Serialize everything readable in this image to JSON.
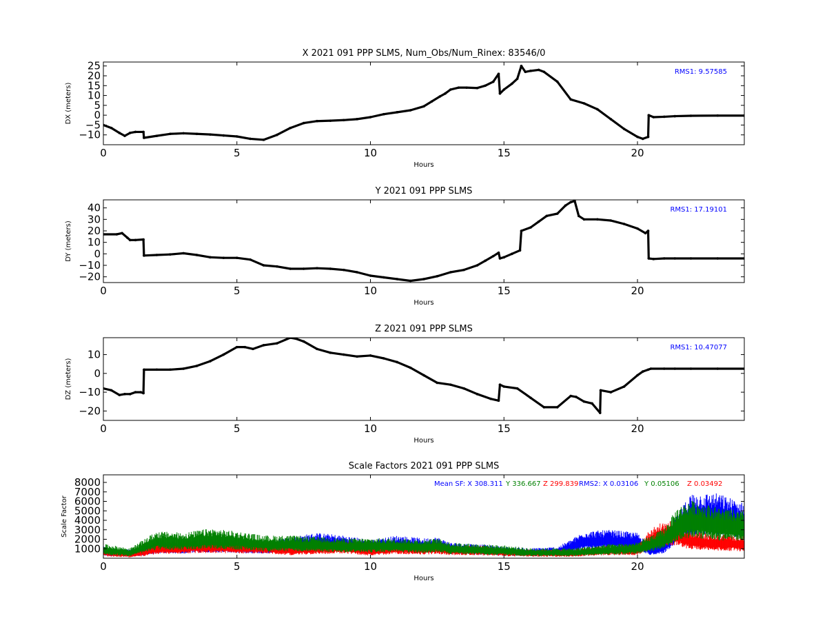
{
  "chart_data": [
    {
      "type": "scatter",
      "title": "X 2021 091 PPP  SLMS, Num_Obs/Num_Rinex: 83546/0",
      "xlabel": "Hours",
      "ylabel": "DX (meters)",
      "xlim": [
        0,
        24
      ],
      "ylim": [
        -15,
        27
      ],
      "xticks": [
        "0",
        "5",
        "10",
        "15",
        "20"
      ],
      "yticks": [
        "−10",
        "−5",
        "0",
        "5",
        "10",
        "15",
        "20",
        "25"
      ],
      "annotation": "RMS1:  9.57585",
      "series": [
        {
          "color": "#000000",
          "x": [
            0,
            0.3,
            0.6,
            0.8,
            1.0,
            1.2,
            1.5,
            1.52,
            2.0,
            2.5,
            3.0,
            3.5,
            4.0,
            4.5,
            5.0,
            5.5,
            6.0,
            6.5,
            7.0,
            7.5,
            8.0,
            8.5,
            9.0,
            9.5,
            10.0,
            10.5,
            11.0,
            11.5,
            12.0,
            12.3,
            12.6,
            12.8,
            13.0,
            13.3,
            13.6,
            14.0,
            14.3,
            14.6,
            14.8,
            14.85,
            15.0,
            15.3,
            15.5,
            15.65,
            15.8,
            16.0,
            16.3,
            16.5,
            17.0,
            17.5,
            18.0,
            18.5,
            19.0,
            19.5,
            20.0,
            20.2,
            20.4,
            20.42,
            20.6,
            21.0,
            21.4,
            22.0,
            23.0,
            24.0
          ],
          "y": [
            -5,
            -6.5,
            -9,
            -10.5,
            -9,
            -8.5,
            -8.5,
            -11.5,
            -10.5,
            -9.5,
            -9.2,
            -9.5,
            -9.8,
            -10.3,
            -10.8,
            -12,
            -12.5,
            -10,
            -6.5,
            -4,
            -3,
            -2.8,
            -2.5,
            -2,
            -1,
            0.5,
            1.5,
            2.5,
            4.5,
            7,
            9.5,
            11,
            13,
            14,
            14,
            13.8,
            15,
            17,
            21,
            11,
            13,
            16,
            18.5,
            25,
            22,
            22.5,
            23,
            22,
            17,
            8,
            6,
            3,
            -2,
            -7,
            -11,
            -12,
            -11,
            0,
            -1,
            -0.8,
            -0.5,
            -0.3,
            -0.2,
            -0.2
          ]
        }
      ],
      "legend": "top-right",
      "grid": false
    },
    {
      "type": "scatter",
      "title": "Y 2021 091 PPP  SLMS",
      "xlabel": "Hours",
      "ylabel": "DY (meters)",
      "xlim": [
        0,
        24
      ],
      "ylim": [
        -25,
        47
      ],
      "xticks": [
        "0",
        "5",
        "10",
        "15",
        "20"
      ],
      "yticks": [
        "−20",
        "−10",
        "0",
        "10",
        "20",
        "30",
        "40"
      ],
      "annotation": "RMS1: 17.19101",
      "series": [
        {
          "color": "#000000",
          "x": [
            0,
            0.5,
            0.7,
            0.9,
            1.0,
            1.2,
            1.5,
            1.52,
            2.0,
            2.5,
            3.0,
            3.5,
            4.0,
            4.5,
            5.0,
            5.5,
            6.0,
            6.5,
            7.0,
            7.5,
            8.0,
            8.5,
            9.0,
            9.5,
            10.0,
            10.5,
            11.0,
            11.5,
            12.0,
            12.5,
            13.0,
            13.5,
            14.0,
            14.3,
            14.6,
            14.8,
            14.85,
            15.0,
            15.3,
            15.6,
            15.65,
            16.0,
            16.3,
            16.6,
            17.0,
            17.3,
            17.5,
            17.65,
            17.8,
            18.0,
            18.5,
            19.0,
            19.5,
            20.0,
            20.3,
            20.4,
            20.42,
            20.6,
            21.0,
            21.4,
            22.0,
            23.0,
            24.0
          ],
          "y": [
            17,
            17,
            18,
            14,
            12,
            12,
            12.5,
            -1.5,
            -1,
            -0.5,
            0.5,
            -1,
            -3,
            -3.5,
            -3.5,
            -5,
            -10,
            -11,
            -13,
            -13,
            -12.5,
            -13,
            -14,
            -16,
            -19,
            -20.5,
            -22,
            -23.5,
            -22,
            -19.5,
            -16,
            -14,
            -10,
            -6,
            -2,
            1,
            -4,
            -3,
            0,
            3,
            20,
            23,
            28,
            33,
            35,
            42,
            45,
            46,
            33,
            30,
            30,
            29,
            26,
            22,
            18,
            20,
            -4,
            -4.5,
            -4,
            -4,
            -4,
            -4,
            -4
          ]
        }
      ],
      "legend": "top-right",
      "grid": false
    },
    {
      "type": "scatter",
      "title": "Z 2021 091 PPP  SLMS",
      "xlabel": "Hours",
      "ylabel": "DZ (meters)",
      "xlim": [
        0,
        24
      ],
      "ylim": [
        -25,
        19
      ],
      "xticks": [
        "0",
        "5",
        "10",
        "15",
        "20"
      ],
      "yticks": [
        "−20",
        "−10",
        "0",
        "10"
      ],
      "annotation": "RMS1: 10.47077",
      "series": [
        {
          "color": "#000000",
          "x": [
            0,
            0.3,
            0.6,
            0.8,
            1.0,
            1.2,
            1.4,
            1.5,
            1.52,
            2.0,
            2.5,
            3.0,
            3.5,
            4.0,
            4.5,
            5.0,
            5.3,
            5.6,
            6.0,
            6.5,
            7.0,
            7.2,
            7.5,
            8.0,
            8.5,
            9.0,
            9.5,
            10.0,
            10.5,
            11.0,
            11.5,
            12.0,
            12.5,
            13.0,
            13.5,
            14.0,
            14.5,
            14.8,
            14.85,
            15.0,
            15.5,
            16.0,
            16.5,
            17.0,
            17.5,
            17.7,
            18.0,
            18.3,
            18.6,
            18.62,
            19.0,
            19.5,
            20.0,
            20.2,
            20.4,
            20.5,
            21.0,
            21.4,
            22.0,
            23.0,
            24.0
          ],
          "y": [
            -8,
            -9,
            -11.5,
            -11,
            -11,
            -10,
            -10,
            -10.5,
            2,
            2,
            2,
            2.5,
            4,
            6.5,
            10,
            14,
            14,
            13,
            15,
            16,
            19,
            18.5,
            17,
            13,
            11,
            10,
            9,
            9.5,
            8,
            6,
            3,
            -1,
            -5,
            -6,
            -8,
            -11,
            -13.5,
            -14.5,
            -6,
            -7,
            -8,
            -13,
            -18,
            -18,
            -12,
            -12.5,
            -15,
            -16,
            -21,
            -9,
            -10,
            -7,
            -1,
            1,
            2,
            2.5,
            2.5,
            2.5,
            2.5,
            2.5,
            2.5
          ]
        }
      ],
      "legend": "top-right",
      "grid": false
    },
    {
      "type": "scatter",
      "title": "Scale Factors 2021 091 PPP  SLMS",
      "xlabel": "Hours",
      "ylabel": "Scale Factor",
      "xlim": [
        0,
        24
      ],
      "ylim": [
        0,
        8800
      ],
      "xticks": [
        "0",
        "5",
        "10",
        "15",
        "20"
      ],
      "yticks": [
        "1000",
        "2000",
        "3000",
        "4000",
        "5000",
        "6000",
        "7000",
        "8000"
      ],
      "annotations": [
        {
          "text": "Mean SF: X 308.311",
          "color": "#0000ff"
        },
        {
          "text": "Y 336.667",
          "color": "#008000"
        },
        {
          "text": "Z 299.839",
          "color": "#ff0000"
        },
        {
          "text": "RMS2: X  0.03106",
          "color": "#0000ff"
        },
        {
          "text": "Y  0.05106",
          "color": "#008000"
        },
        {
          "text": "Z  0.03492",
          "color": "#ff0000"
        }
      ],
      "series": [
        {
          "color": "#0000ff",
          "x": [
            0,
            1.0,
            1.5,
            2,
            3,
            4,
            5,
            6,
            7,
            8,
            9,
            10,
            11,
            12,
            12.5,
            13,
            14,
            15,
            16,
            17,
            17.5,
            18,
            19,
            20,
            20.5,
            21,
            21.5,
            22,
            23,
            24
          ],
          "y": [
            700,
            500,
            700,
            1100,
            1100,
            1300,
            1200,
            1100,
            1400,
            1700,
            1500,
            1200,
            1500,
            1300,
            1400,
            1000,
            900,
            700,
            600,
            700,
            1200,
            1800,
            1900,
            1700,
            800,
            1200,
            3000,
            4500,
            4500,
            3800
          ]
        },
        {
          "color": "#ff0000",
          "x": [
            0,
            1.0,
            1.5,
            2,
            3,
            4,
            5,
            6,
            7,
            8,
            9,
            10,
            11,
            12,
            12.5,
            13,
            14,
            15,
            16,
            17,
            17.5,
            18,
            19,
            20,
            20.5,
            21,
            21.5,
            22,
            23,
            24
          ],
          "y": [
            600,
            400,
            600,
            1000,
            1100,
            1200,
            1100,
            1100,
            800,
            1000,
            1100,
            700,
            1000,
            900,
            1000,
            800,
            800,
            600,
            500,
            500,
            500,
            600,
            800,
            800,
            2000,
            2500,
            2500,
            1800,
            1600,
            1500
          ]
        },
        {
          "color": "#008000",
          "x": [
            0,
            1.0,
            1.5,
            2,
            3,
            4,
            5,
            6,
            7,
            8,
            9,
            10,
            11,
            12,
            12.5,
            13,
            14,
            15,
            16,
            17,
            17.5,
            18,
            19,
            20,
            20.5,
            21,
            21.5,
            22,
            23,
            24
          ],
          "y": [
            900,
            600,
            1200,
            1800,
            1700,
            2000,
            1800,
            1500,
            1500,
            1400,
            1300,
            1300,
            1300,
            1200,
            1300,
            1000,
            900,
            800,
            600,
            600,
            600,
            700,
            900,
            1000,
            1500,
            2000,
            3500,
            4000,
            3500,
            3200
          ]
        }
      ],
      "legend": "top-right",
      "grid": false
    }
  ]
}
